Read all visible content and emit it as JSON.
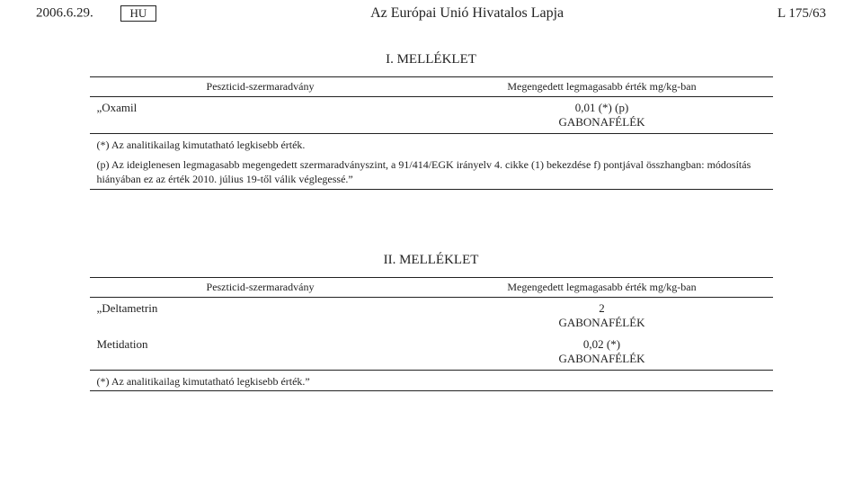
{
  "header": {
    "date": "2006.6.29.",
    "lang_box": "HU",
    "journal": "Az Európai Unió Hivatalos Lapja",
    "page_ref": "L 175/63"
  },
  "annex1": {
    "title": "I. MELLÉKLET",
    "col_headers": {
      "c1": "Peszticid-szermaradvány",
      "c2": "Megengedett legmagasabb érték mg/kg-ban"
    },
    "rows": [
      {
        "substance": "„Oxamil",
        "value_line1": "0,01 (*) (p)",
        "value_line2": "GABONAFÉLÉK"
      }
    ],
    "footnotes": {
      "line1": "(*) Az analitikailag kimutatható legkisebb érték.",
      "line2": "(p) Az ideiglenesen legmagasabb megengedett szermaradványszint, a 91/414/EGK irányelv 4. cikke (1) bekezdése f) pontjával összhangban: módosítás hiányában ez az érték 2010. július 19-től válik véglegessé.”"
    }
  },
  "annex2": {
    "title": "II. MELLÉKLET",
    "col_headers": {
      "c1": "Peszticid-szermaradvány",
      "c2": "Megengedett legmagasabb érték mg/kg-ban"
    },
    "rows": [
      {
        "substance": "„Deltametrin",
        "value_line1": "2",
        "value_line2": "GABONAFÉLÉK"
      },
      {
        "substance": "Metidation",
        "value_line1": "0,02 (*)",
        "value_line2": "GABONAFÉLÉK"
      }
    ],
    "footnotes": {
      "line1": "(*) Az analitikailag kimutatható legkisebb érték.”"
    }
  }
}
